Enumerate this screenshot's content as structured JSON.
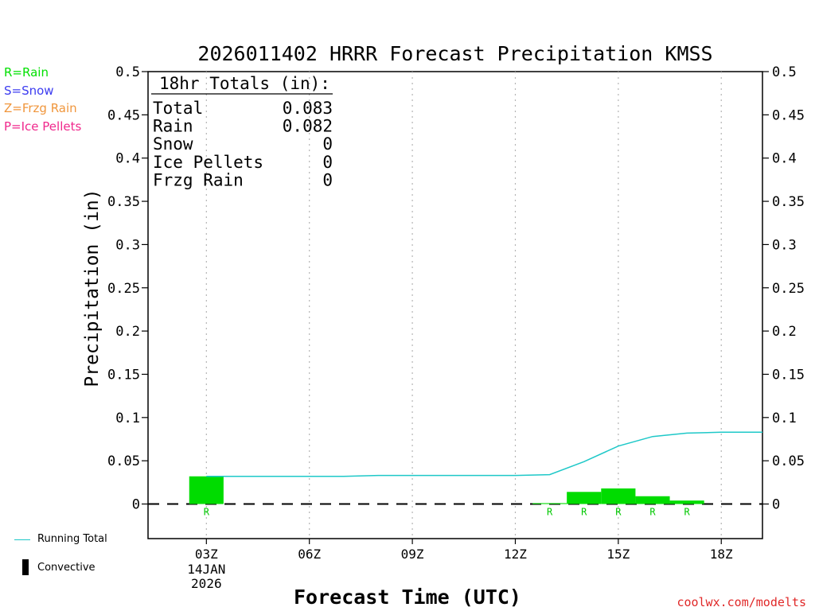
{
  "chart_data": {
    "type": "bar",
    "title": "2026011402 HRRR Forecast Precipitation KMSS",
    "xlabel": "Forecast Time (UTC)",
    "ylabel": "Precipitation (in)",
    "ylim": [
      -0.04,
      0.5
    ],
    "xlim": [
      1.3,
      19.2
    ],
    "grid": true,
    "yticks": [
      "0.5",
      "0.45",
      "0.4",
      "0.35",
      "0.3",
      "0.25",
      "0.2",
      "0.15",
      "0.1",
      "0.05",
      "0"
    ],
    "ytick_values": [
      0.5,
      0.45,
      0.4,
      0.35,
      0.3,
      0.25,
      0.2,
      0.15,
      0.1,
      0.05,
      0
    ],
    "xticks": [
      {
        "hour": 3,
        "label": "03Z",
        "sub": [
          "14JAN",
          "2026"
        ]
      },
      {
        "hour": 6,
        "label": "06Z",
        "sub": []
      },
      {
        "hour": 9,
        "label": "09Z",
        "sub": []
      },
      {
        "hour": 12,
        "label": "12Z",
        "sub": []
      },
      {
        "hour": 15,
        "label": "15Z",
        "sub": []
      },
      {
        "hour": 18,
        "label": "18Z",
        "sub": []
      }
    ],
    "bars": [
      {
        "hour": 3,
        "value": 0.032,
        "type": "R"
      },
      {
        "hour": 13,
        "value": 0.001,
        "type": "R"
      },
      {
        "hour": 14,
        "value": 0.014,
        "type": "R"
      },
      {
        "hour": 15,
        "value": 0.018,
        "type": "R"
      },
      {
        "hour": 16,
        "value": 0.009,
        "type": "R"
      },
      {
        "hour": 17,
        "value": 0.004,
        "type": "R"
      }
    ],
    "series": [
      {
        "name": "Running Total",
        "x": [
          3,
          4,
          5,
          6,
          7,
          8,
          9,
          10,
          11,
          12,
          13,
          14,
          15,
          16,
          17,
          18,
          19,
          19.2
        ],
        "values": [
          0.032,
          0.032,
          0.032,
          0.032,
          0.032,
          0.033,
          0.033,
          0.033,
          0.033,
          0.033,
          0.034,
          0.049,
          0.067,
          0.078,
          0.082,
          0.083,
          0.083,
          0.083
        ]
      }
    ],
    "totals": {
      "heading": "18hr Totals (in):",
      "rows": [
        {
          "label": "Total",
          "value": "0.083"
        },
        {
          "label": "Rain",
          "value": "0.082"
        },
        {
          "label": "Snow",
          "value": "0"
        },
        {
          "label": "Ice Pellets",
          "value": "0"
        },
        {
          "label": "Frzg Rain",
          "value": "0"
        }
      ]
    }
  },
  "legend": {
    "ptypes": [
      {
        "text": "R=Rain",
        "color": "#00e000"
      },
      {
        "text": "S=Snow",
        "color": "#3c3cf0"
      },
      {
        "text": "Z=Frzg Rain",
        "color": "#f0963c"
      },
      {
        "text": "P=Ice Pellets",
        "color": "#f0288c"
      }
    ],
    "running_total": "Running Total",
    "convective": "Convective"
  },
  "colors": {
    "bar": "#00dc00",
    "line": "#1ec8c8",
    "rain_label": "#00c800",
    "credit": "#e02828"
  },
  "credit": "coolwx.com/modelts"
}
